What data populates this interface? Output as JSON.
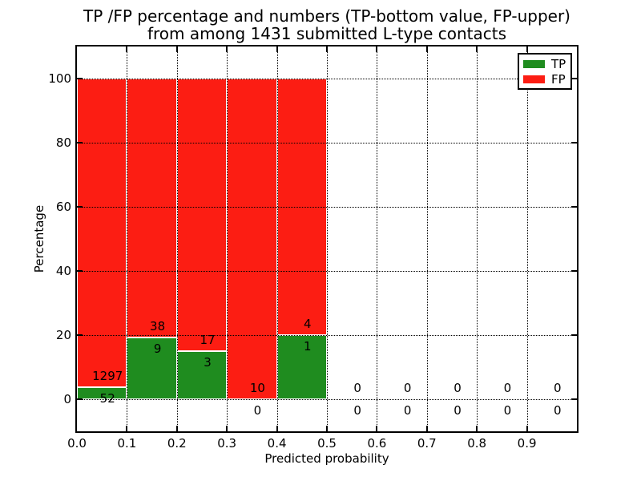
{
  "figure": {
    "title_line1": "TP /FP percentage and numbers (TP-bottom value, FP-upper)",
    "title_line2": "from among 1431 submitted L-type contacts",
    "background": "#ffffff"
  },
  "axes": {
    "xlabel": "Predicted probability",
    "ylabel": "Percentage",
    "xtick_labels": [
      "0.0",
      "0.1",
      "0.2",
      "0.3",
      "0.4",
      "0.5",
      "0.6",
      "0.7",
      "0.8",
      "0.9"
    ],
    "ytick_labels": [
      "0",
      "20",
      "40",
      "60",
      "80",
      "100"
    ],
    "ytick_values": [
      0,
      20,
      40,
      60,
      80,
      100
    ],
    "xlim": [
      0.0,
      1.0
    ],
    "ylim": [
      -10,
      110
    ],
    "grid_style": "dotted",
    "frame_color": "#000000"
  },
  "legend": {
    "position": "upper-right",
    "entries": [
      {
        "label": "TP",
        "color": "#1f8c1f"
      },
      {
        "label": "FP",
        "color": "#fc1d13"
      }
    ]
  },
  "chart_data": {
    "type": "bar",
    "stacked": true,
    "normalized_to_percent": 100,
    "title": "TP /FP percentage and numbers (TP-bottom value, FP-upper) from among 1431 submitted L-type contacts",
    "xlabel": "Predicted probability",
    "ylabel": "Percentage",
    "total_contacts": 1431,
    "bin_width": 0.1,
    "bin_starts": [
      0.0,
      0.1,
      0.2,
      0.3,
      0.4,
      0.5,
      0.6,
      0.7,
      0.8,
      0.9
    ],
    "series": [
      {
        "name": "TP",
        "color": "#1f8c1f",
        "counts": [
          52,
          9,
          3,
          0,
          1,
          0,
          0,
          0,
          0,
          0
        ]
      },
      {
        "name": "FP",
        "color": "#fc1d13",
        "counts": [
          1297,
          38,
          17,
          10,
          4,
          0,
          0,
          0,
          0,
          0
        ]
      }
    ],
    "tp_percent_by_bin": [
      3.85,
      19.15,
      15.0,
      0.0,
      20.0,
      0,
      0,
      0,
      0,
      0
    ],
    "bar_edge_color": "#ffffff",
    "annotation_rule": "FP count above TP bar top, TP count below TP bar top"
  }
}
